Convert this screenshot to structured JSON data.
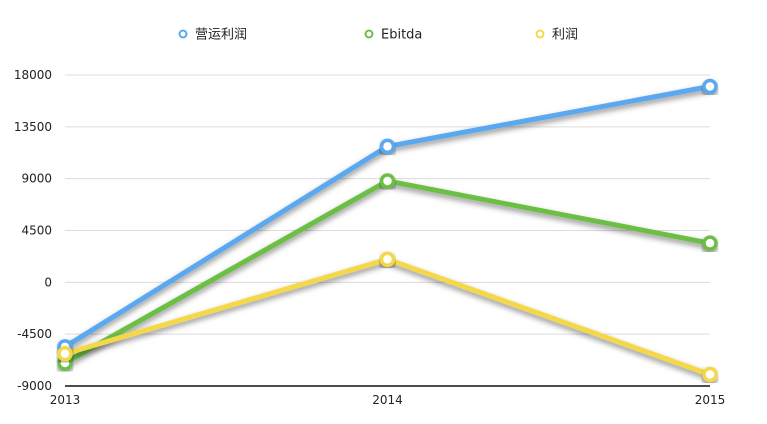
{
  "chart_data": {
    "type": "line",
    "x": [
      "2013",
      "2014",
      "2015"
    ],
    "ylim": [
      -9000,
      18000
    ],
    "yticks": [
      18000,
      13500,
      9000,
      4500,
      0,
      -4500,
      -9000
    ],
    "grid": true,
    "legend_position": "top",
    "series": [
      {
        "name": "营运利润",
        "color": "#5AA8F0",
        "values": [
          -5600,
          11800,
          17000
        ]
      },
      {
        "name": "Ebitda",
        "color": "#6CBF45",
        "values": [
          -7000,
          8800,
          3400
        ]
      },
      {
        "name": "利润",
        "color": "#F5D84A",
        "values": [
          -6200,
          2000,
          -8000
        ]
      }
    ]
  }
}
